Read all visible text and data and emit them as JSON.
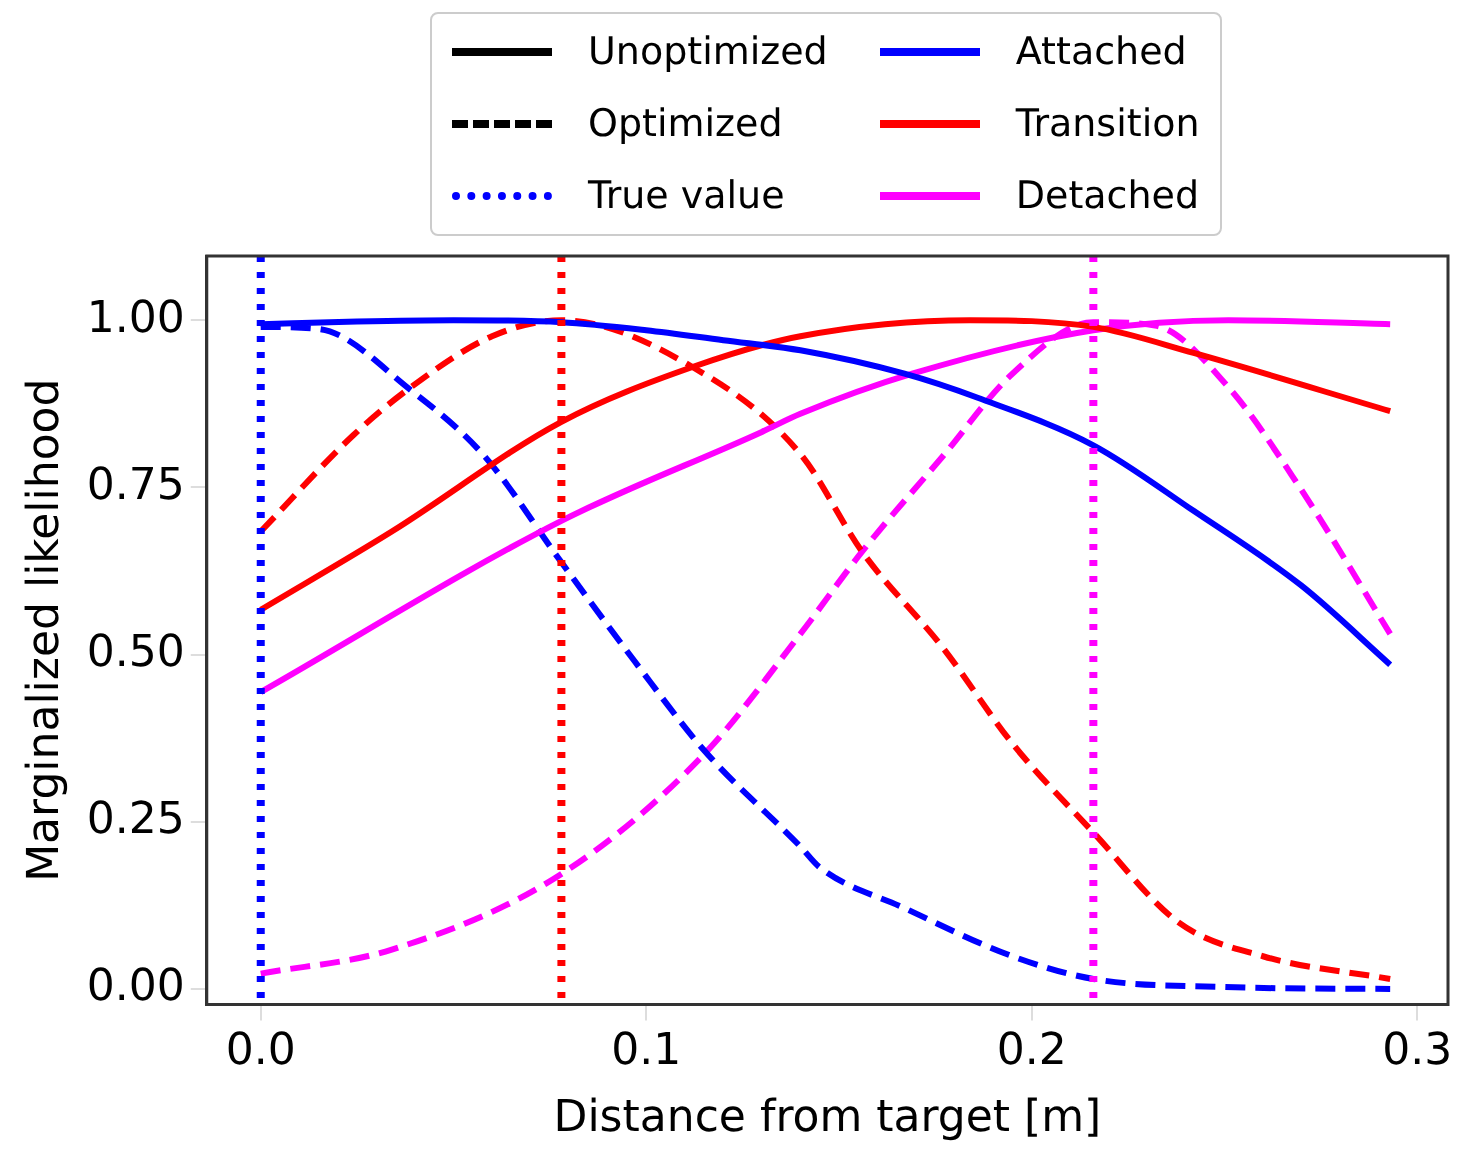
{
  "chart_data": {
    "type": "line",
    "xlabel": "Distance from target [m]",
    "ylabel": "Marginalized likelihood",
    "xlim": [
      -0.014,
      0.308
    ],
    "ylim": [
      -0.023,
      1.096
    ],
    "xticks": [
      {
        "value": 0,
        "label": "0.0"
      },
      {
        "value": 0.1,
        "label": "0.1"
      },
      {
        "value": 0.2,
        "label": "0.2"
      },
      {
        "value": 0.3,
        "label": "0.3"
      }
    ],
    "yticks": [
      {
        "value": 0,
        "label": "0.00"
      },
      {
        "value": 0.25,
        "label": "0.25"
      },
      {
        "value": 0.5,
        "label": "0.50"
      },
      {
        "value": 0.75,
        "label": "0.75"
      },
      {
        "value": 1,
        "label": "1.00"
      }
    ],
    "grid": false,
    "legend": "top",
    "marker": "none",
    "annotations": [
      "Unoptimized",
      "Optimized"
    ],
    "series": [
      {
        "name": "Attached",
        "color": "#0000ff",
        "line_style": "solid",
        "x": [
          0,
          0.025,
          0.05,
          0.078,
          0.1,
          0.12,
          0.14,
          0.167,
          0.186,
          0.216,
          0.242,
          0.27,
          0.293
        ],
        "values": [
          0.994,
          0.998,
          1.0,
          0.997,
          0.985,
          0.97,
          0.955,
          0.92,
          0.884,
          0.813,
          0.715,
          0.603,
          0.485
        ]
      },
      {
        "name": "Transition",
        "color": "#ff0000",
        "line_style": "solid",
        "x": [
          0,
          0.034,
          0.078,
          0.112,
          0.14,
          0.184,
          0.216,
          0.242,
          0.293
        ],
        "values": [
          0.567,
          0.684,
          0.848,
          0.93,
          0.976,
          1.0,
          0.99,
          0.951,
          0.864
        ]
      },
      {
        "name": "Detached",
        "color": "#ff00ff",
        "line_style": "solid",
        "x": [
          0,
          0.078,
          0.13,
          0.14,
          0.169,
          0.216,
          0.251,
          0.293
        ],
        "values": [
          0.444,
          0.7,
          0.833,
          0.86,
          0.92,
          0.985,
          1.0,
          0.994
        ]
      },
      {
        "color": "#0000ff",
        "line_style": "dashed",
        "x": [
          0,
          0.015,
          0.039,
          0.058,
          0.078,
          0.097,
          0.115,
          0.14,
          0.145,
          0.167,
          0.195,
          0.216,
          0.25,
          0.293
        ],
        "values": [
          0.99,
          0.987,
          0.895,
          0.797,
          0.638,
          0.49,
          0.357,
          0.213,
          0.182,
          0.121,
          0.049,
          0.015,
          0.003,
          0.0
        ]
      },
      {
        "color": "#ff0000",
        "line_style": "dashed",
        "x": [
          0,
          0.024,
          0.039,
          0.06,
          0.078,
          0.112,
          0.14,
          0.156,
          0.177,
          0.195,
          0.216,
          0.238,
          0.26,
          0.293
        ],
        "values": [
          0.684,
          0.828,
          0.9,
          0.976,
          1.0,
          0.93,
          0.8,
          0.654,
          0.51,
          0.367,
          0.234,
          0.1,
          0.049,
          0.015
        ]
      },
      {
        "color": "#ff00ff",
        "line_style": "dashed",
        "x": [
          0,
          0.034,
          0.078,
          0.115,
          0.14,
          0.156,
          0.177,
          0.195,
          0.216,
          0.232,
          0.251,
          0.27,
          0.293
        ],
        "values": [
          0.023,
          0.059,
          0.172,
          0.351,
          0.531,
          0.654,
          0.797,
          0.92,
          0.997,
          0.992,
          0.9,
          0.746,
          0.531
        ]
      }
    ],
    "ref_lines": [
      {
        "axis": "x",
        "value": 0,
        "color": "#0000ff",
        "line_style": "dotted",
        "label": "True value"
      },
      {
        "axis": "x",
        "value": 0.078,
        "color": "#ff0000",
        "line_style": "dotted"
      },
      {
        "axis": "x",
        "value": 0.216,
        "color": "#ff00ff",
        "line_style": "dotted"
      }
    ]
  }
}
